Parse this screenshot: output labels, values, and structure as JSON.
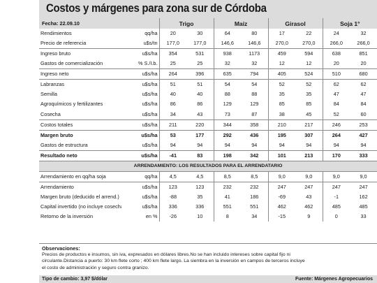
{
  "title": "Costos y márgenes para zona sur de Córdoba",
  "header": {
    "fecha": "Fecha: 22.09.10",
    "crops": [
      "Trigo",
      "Maíz",
      "Girasol",
      "Soja 1°"
    ]
  },
  "rows_top": [
    {
      "label": "Rendimientos",
      "unit": "qq/ha",
      "v": [
        "20",
        "30",
        "64",
        "80",
        "17",
        "22",
        "24",
        "32"
      ],
      "cls": ""
    },
    {
      "label": "Precio de referencia",
      "unit": "u$s/tn",
      "v": [
        "177,0",
        "177,0",
        "146,6",
        "146,6",
        "270,0",
        "270,0",
        "266,0",
        "266,0"
      ],
      "cls": ""
    },
    {
      "label": "Ingreso bruto",
      "unit": "u$s/ha",
      "v": [
        "354",
        "531",
        "938",
        "1173",
        "459",
        "594",
        "638",
        "851"
      ],
      "cls": "sep"
    },
    {
      "label": "Gastos de comercialización",
      "unit": "% S./I.b.",
      "v": [
        "25",
        "25",
        "32",
        "32",
        "12",
        "12",
        "20",
        "20"
      ],
      "cls": ""
    },
    {
      "label": "Ingreso neto",
      "unit": "u$s/ha",
      "v": [
        "264",
        "396",
        "635",
        "794",
        "405",
        "524",
        "510",
        "680"
      ],
      "cls": "sep"
    },
    {
      "label": "Labranzas",
      "unit": "u$s/ha",
      "v": [
        "51",
        "51",
        "54",
        "54",
        "52",
        "52",
        "62",
        "62"
      ],
      "cls": "sep"
    },
    {
      "label": "Semilla",
      "unit": "u$s/ha",
      "v": [
        "40",
        "40",
        "88",
        "88",
        "35",
        "35",
        "47",
        "47"
      ],
      "cls": ""
    },
    {
      "label": "Agroquímicos y fertilizantes",
      "unit": "u$s/ha",
      "v": [
        "86",
        "86",
        "129",
        "129",
        "85",
        "85",
        "84",
        "84"
      ],
      "cls": ""
    },
    {
      "label": "Cosecha",
      "unit": "u$s/ha",
      "v": [
        "34",
        "43",
        "73",
        "87",
        "38",
        "45",
        "52",
        "60"
      ],
      "cls": ""
    },
    {
      "label": "Costos totales",
      "unit": "u$s/ha",
      "v": [
        "211",
        "220",
        "344",
        "358",
        "210",
        "217",
        "246",
        "253"
      ],
      "cls": "sep"
    },
    {
      "label": "Margen bruto",
      "unit": "u$s/ha",
      "v": [
        "53",
        "177",
        "292",
        "436",
        "195",
        "307",
        "264",
        "427"
      ],
      "cls": "sep bold"
    },
    {
      "label": "Gastos de estructura",
      "unit": "u$s/ha",
      "v": [
        "94",
        "94",
        "94",
        "94",
        "94",
        "94",
        "94",
        "94"
      ],
      "cls": ""
    },
    {
      "label": "Resultado neto",
      "unit": "u$s/ha",
      "v": [
        "-41",
        "83",
        "198",
        "342",
        "101",
        "213",
        "170",
        "333"
      ],
      "cls": "sep bold"
    }
  ],
  "section_title": "ARRENDAMIENTO: LOS RESULTADOS PARA EL ARRENDATARIO",
  "rows_bottom": [
    {
      "label": "Arrendamiento en qq/ha soja",
      "unit": "qq/ha",
      "v": [
        "4,5",
        "4,5",
        "8,5",
        "8,5",
        "9,0",
        "9,0",
        "9,0",
        "9,0"
      ],
      "cls": ""
    },
    {
      "label": "Arrendamiento",
      "unit": "u$s/ha",
      "v": [
        "123",
        "123",
        "232",
        "232",
        "247",
        "247",
        "247",
        "247"
      ],
      "cls": "sep"
    },
    {
      "label": "Margen bruto (deducido el arrend.)",
      "unit": "u$s/ha",
      "v": [
        "-88",
        "35",
        "41",
        "186",
        "-69",
        "43",
        "-1",
        "162"
      ],
      "cls": ""
    },
    {
      "label": "Capital invertido (no incluye cosecha)",
      "unit": "u$s/ha",
      "v": [
        "336",
        "336",
        "551",
        "551",
        "462",
        "462",
        "485",
        "485"
      ],
      "cls": ""
    },
    {
      "label": "Retorno de la inversión",
      "unit": "en %",
      "v": [
        "-26",
        "10",
        "8",
        "34",
        "-15",
        "9",
        "0",
        "33"
      ],
      "cls": ""
    }
  ],
  "observaciones": {
    "heading": "Observaciones:",
    "lines": [
      "Precios de productos e insumos, sin iva, expresados en dólares libres.No se han incluido intereses sobre capital fijo ni",
      "circulante.Distancia a puerto: 30 km flete corto ; 400 km flete largo. La siembra en la inversión en campos de terceros incluye",
      "el costo de administración y seguro contra granizo."
    ]
  },
  "footer": {
    "left": "Tipo de cambio: 3,97  $/dólar",
    "right": "Fuente: Márgenes Agropecuarios"
  }
}
